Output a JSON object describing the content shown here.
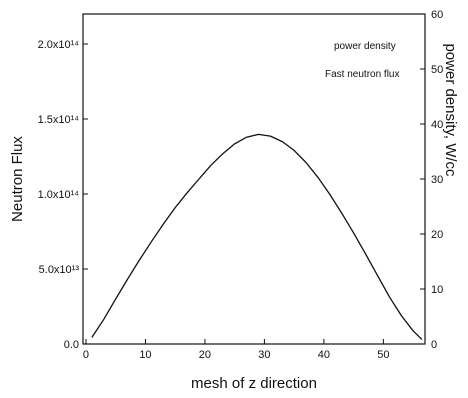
{
  "chart_data": {
    "type": "line",
    "xlabel": "mesh of z direction",
    "ylabel_left": "Neutron Flux",
    "ylabel_right": "power density, W/cc",
    "x_ticks": [
      0,
      10,
      20,
      30,
      40,
      50
    ],
    "xlim": [
      -0.5,
      57
    ],
    "left_y": {
      "ylim": [
        0,
        220000000000000.0
      ],
      "ticks": [
        0,
        50000000000000.0,
        100000000000000.0,
        150000000000000.0,
        200000000000000.0
      ],
      "tick_labels": [
        "0.0",
        "5.0x10¹³",
        "1.0x10¹⁴",
        "1.5x10¹⁴",
        "2.0x10¹⁴"
      ]
    },
    "right_y": {
      "ylim": [
        0,
        60
      ],
      "ticks": [
        0,
        10,
        20,
        30,
        40,
        50,
        60
      ],
      "tick_labels": [
        "0",
        "10",
        "20",
        "30",
        "40",
        "50",
        "60"
      ]
    },
    "legend": {
      "placement": "top-right",
      "entries": [
        "power density",
        "Fast neutron flux"
      ]
    },
    "series": [
      {
        "axis": "right",
        "color": "#111111",
        "x": [
          1,
          3,
          5,
          7,
          9,
          11,
          13,
          15,
          17,
          19,
          21,
          23,
          25,
          27,
          29,
          31,
          33,
          35,
          37,
          39,
          41,
          43,
          45,
          47,
          49,
          51,
          53,
          55,
          56.5
        ],
        "y": [
          1.2,
          4.5,
          8.2,
          11.8,
          15.3,
          18.6,
          21.8,
          24.8,
          27.5,
          30.0,
          32.5,
          34.6,
          36.4,
          37.6,
          38.1,
          37.8,
          36.8,
          35.2,
          33.0,
          30.3,
          27.2,
          23.8,
          20.2,
          16.4,
          12.5,
          8.6,
          5.2,
          2.4,
          0.8
        ]
      }
    ]
  }
}
